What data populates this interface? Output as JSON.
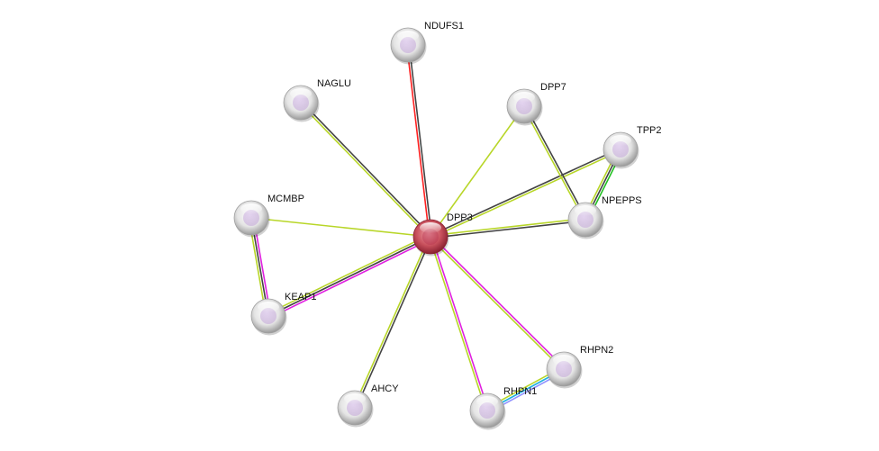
{
  "nodes": [
    {
      "id": "DPP3",
      "label": "DPP3",
      "query": true,
      "color": "#c0404f"
    },
    {
      "id": "NDUFS1",
      "label": "NDUFS1",
      "color": "#e0e0e0"
    },
    {
      "id": "NAGLU",
      "label": "NAGLU",
      "color": "#e0e0e0"
    },
    {
      "id": "DPP7",
      "label": "DPP7",
      "color": "#e0e0e0"
    },
    {
      "id": "TPP2",
      "label": "TPP2",
      "color": "#e0e0e0"
    },
    {
      "id": "NPEPPS",
      "label": "NPEPPS",
      "color": "#e0e0e0"
    },
    {
      "id": "MCMBP",
      "label": "MCMBP",
      "color": "#e0e0e0"
    },
    {
      "id": "KEAP1",
      "label": "KEAP1",
      "color": "#e0e0e0"
    },
    {
      "id": "AHCY",
      "label": "AHCY",
      "color": "#e0e0e0"
    },
    {
      "id": "RHPN1",
      "label": "RHPN1",
      "color": "#e0e0e0"
    },
    {
      "id": "RHPN2",
      "label": "RHPN2",
      "color": "#e0e0e0"
    }
  ],
  "edges": [
    {
      "a": "DPP3",
      "b": "NDUFS1",
      "colors": [
        "#ff2020",
        "#444444"
      ]
    },
    {
      "a": "DPP3",
      "b": "NAGLU",
      "colors": [
        "#b8d628",
        "#444444"
      ]
    },
    {
      "a": "DPP3",
      "b": "DPP7",
      "colors": [
        "#b8d628"
      ]
    },
    {
      "a": "DPP3",
      "b": "TPP2",
      "colors": [
        "#444444",
        "#b8d628"
      ]
    },
    {
      "a": "DPP3",
      "b": "NPEPPS",
      "colors": [
        "#b8d628",
        "#444444"
      ]
    },
    {
      "a": "DPP3",
      "b": "MCMBP",
      "colors": [
        "#b8d628"
      ]
    },
    {
      "a": "DPP3",
      "b": "KEAP1",
      "colors": [
        "#e020e0",
        "#444444",
        "#b8d628"
      ]
    },
    {
      "a": "DPP3",
      "b": "AHCY",
      "colors": [
        "#444444",
        "#b8d628"
      ]
    },
    {
      "a": "DPP3",
      "b": "RHPN1",
      "colors": [
        "#e020e0",
        "#b8d628"
      ]
    },
    {
      "a": "DPP3",
      "b": "RHPN2",
      "colors": [
        "#e020e0",
        "#b8d628"
      ]
    },
    {
      "a": "DPP7",
      "b": "NPEPPS",
      "colors": [
        "#444444",
        "#b8d628"
      ]
    },
    {
      "a": "TPP2",
      "b": "NPEPPS",
      "colors": [
        "#20c020",
        "#444444",
        "#b8d628"
      ]
    },
    {
      "a": "MCMBP",
      "b": "KEAP1",
      "colors": [
        "#e020e0",
        "#444444",
        "#b8d628"
      ]
    },
    {
      "a": "RHPN1",
      "b": "RHPN2",
      "colors": [
        "#b8d628",
        "#20b0e0",
        "#9090ff"
      ]
    }
  ]
}
